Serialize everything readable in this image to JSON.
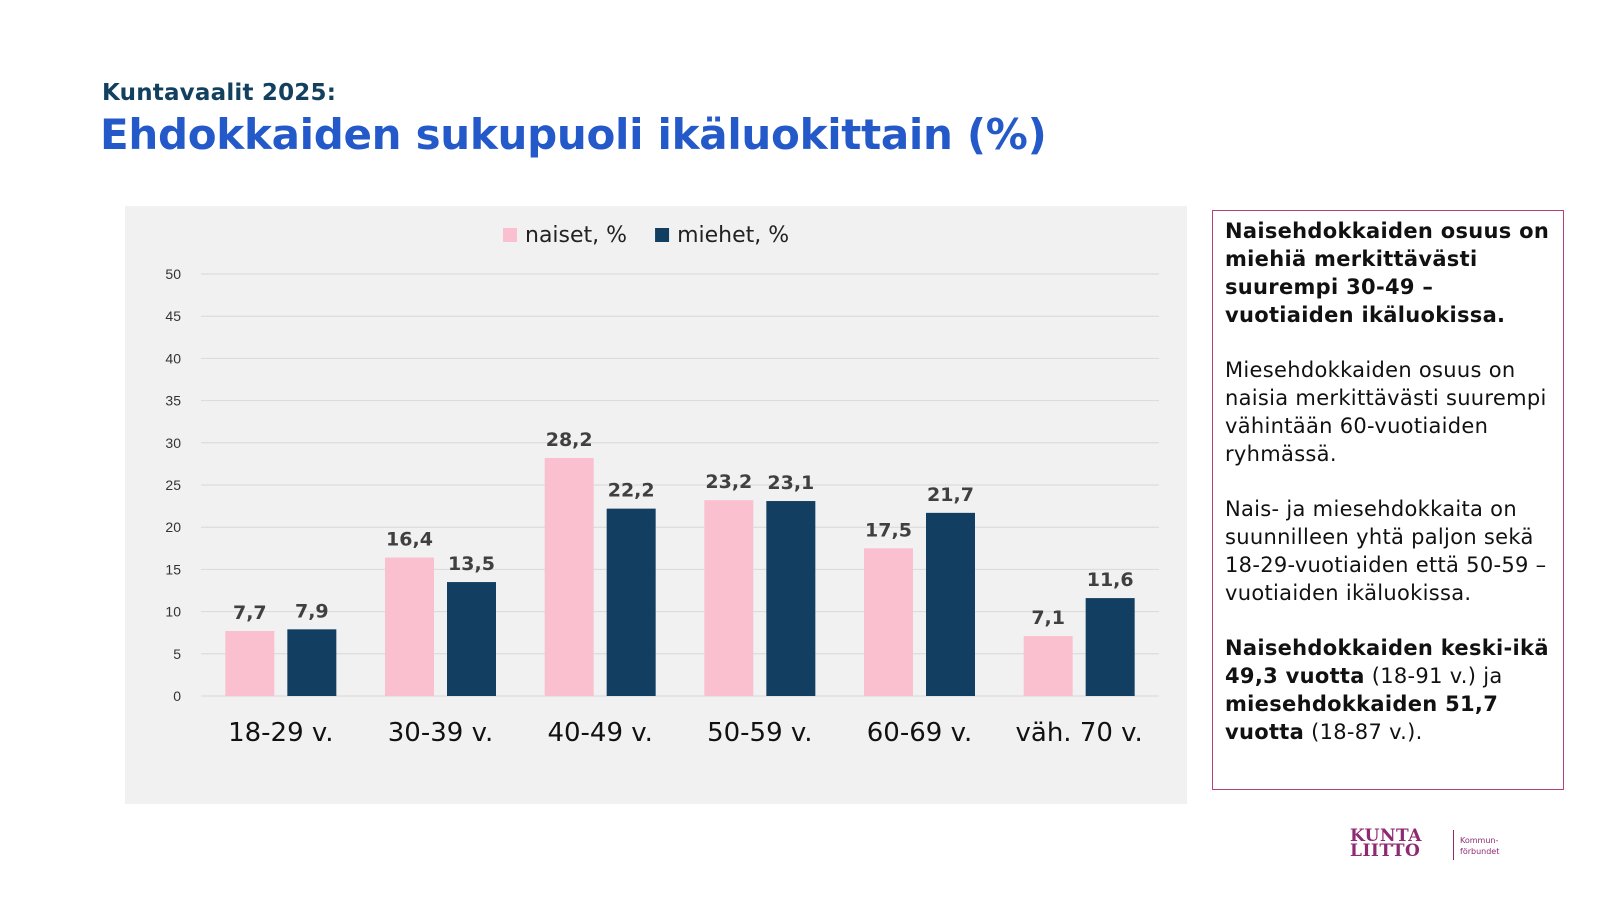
{
  "header": {
    "supertitle": "Kuntavaalit 2025:",
    "title": "Ehdokkaiden sukupuoli ikäluokittain (%)"
  },
  "chart_data": {
    "type": "bar",
    "categories": [
      "18-29 v.",
      "30-39 v.",
      "40-49 v.",
      "50-59 v.",
      "60-69 v.",
      "väh. 70 v."
    ],
    "series": [
      {
        "name": "naiset, %",
        "values": [
          7.7,
          16.4,
          28.2,
          23.2,
          17.5,
          7.1
        ],
        "labels": [
          "7,7",
          "16,4",
          "28,2",
          "23,2",
          "17,5",
          "7,1"
        ],
        "color": "#fbc0d0"
      },
      {
        "name": "miehet, %",
        "values": [
          7.9,
          13.5,
          22.2,
          23.1,
          21.7,
          11.6
        ],
        "labels": [
          "7,9",
          "13,5",
          "22,2",
          "23,1",
          "21,7",
          "11,6"
        ],
        "color": "#123f61"
      }
    ],
    "ylim": [
      0,
      50
    ],
    "yticks": [
      0,
      5,
      10,
      15,
      20,
      25,
      30,
      35,
      40,
      45,
      50
    ],
    "grid": true,
    "legend": "top"
  },
  "info": {
    "p1_bold": "Naisehdokkaiden osuus on miehiä merkittävästi suurempi 30-49 –vuotiaiden ikäluokissa.",
    "p2": "Miesehdokkaiden osuus on naisia merkittävästi suurempi vähintään 60-vuotiaiden ryhmässä.",
    "p3": "Nais- ja miesehdokkaita on suunnilleen yhtä paljon sekä 18-29-vuotiaiden että 50-59 –vuotiaiden ikäluokissa.",
    "p4_part1_bold": "Naisehdokkaiden keski-ikä 49,3 vuotta",
    "p4_part2": " (18-91 v.) ja ",
    "p4_part3_bold": "miesehdokkaiden 51,7 vuotta",
    "p4_part4": " (18-87 v.)."
  },
  "logo": {
    "line1": "KUNTA",
    "line2": "LIITTO",
    "sub1": "Kommun-",
    "sub2": "förbundet"
  }
}
